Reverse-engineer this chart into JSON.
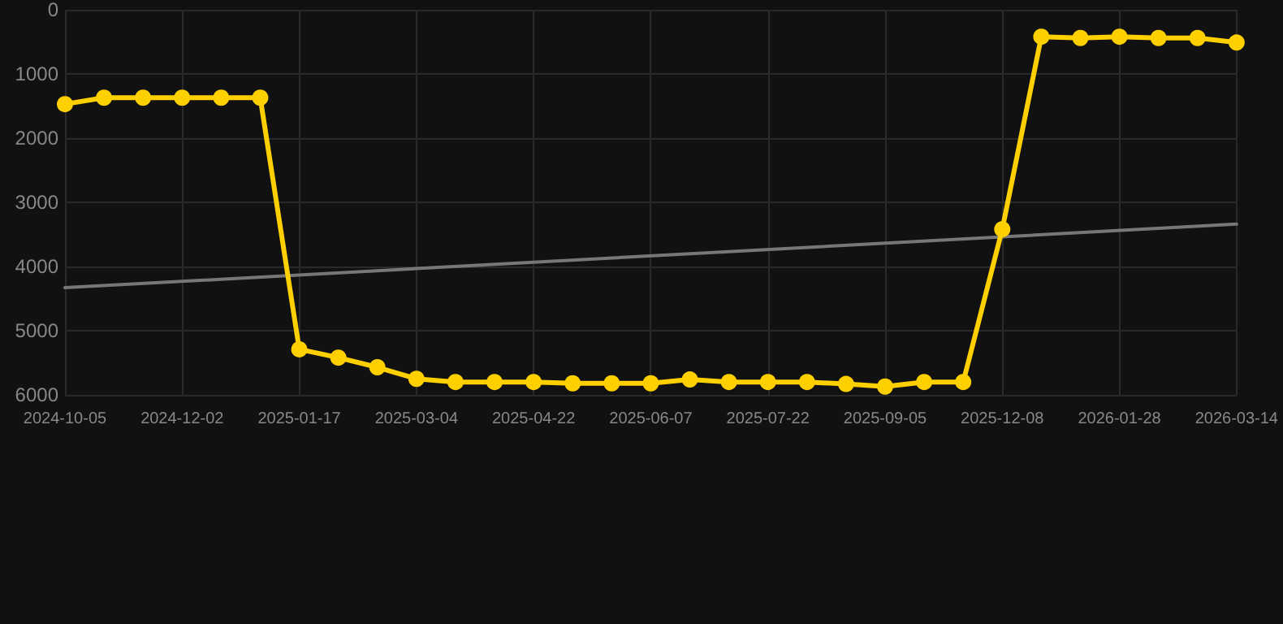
{
  "chart_data": {
    "type": "line",
    "categories": [
      "2024-10-05",
      null,
      null,
      "2024-12-02",
      null,
      null,
      "2025-01-17",
      null,
      null,
      "2025-03-04",
      null,
      null,
      "2025-04-22",
      null,
      null,
      "2025-06-07",
      null,
      null,
      "2025-07-22",
      null,
      null,
      "2025-09-05",
      null,
      null,
      "2025-12-08",
      null,
      null,
      "2026-01-28",
      null,
      null,
      "2026-03-14"
    ],
    "series": [
      {
        "color": "#ffd000",
        "marker": "circle",
        "values": [
          1470,
          1370,
          1370,
          1370,
          1370,
          1370,
          5290,
          5420,
          5570,
          5750,
          5800,
          5800,
          5800,
          5820,
          5820,
          5820,
          5760,
          5800,
          5800,
          5800,
          5830,
          5870,
          5800,
          5800,
          3420,
          420,
          440,
          420,
          440,
          440,
          510
        ]
      },
      {
        "color": "#777777",
        "marker": "none",
        "values": [
          4330,
          null,
          null,
          null,
          null,
          null,
          null,
          null,
          null,
          null,
          null,
          null,
          null,
          null,
          null,
          null,
          null,
          null,
          null,
          null,
          null,
          null,
          null,
          null,
          null,
          null,
          null,
          null,
          null,
          null,
          3340
        ]
      }
    ],
    "ylim": [
      6000,
      0
    ],
    "yticks": [
      0,
      1000,
      2000,
      3000,
      4000,
      5000,
      6000
    ],
    "grid": true
  }
}
